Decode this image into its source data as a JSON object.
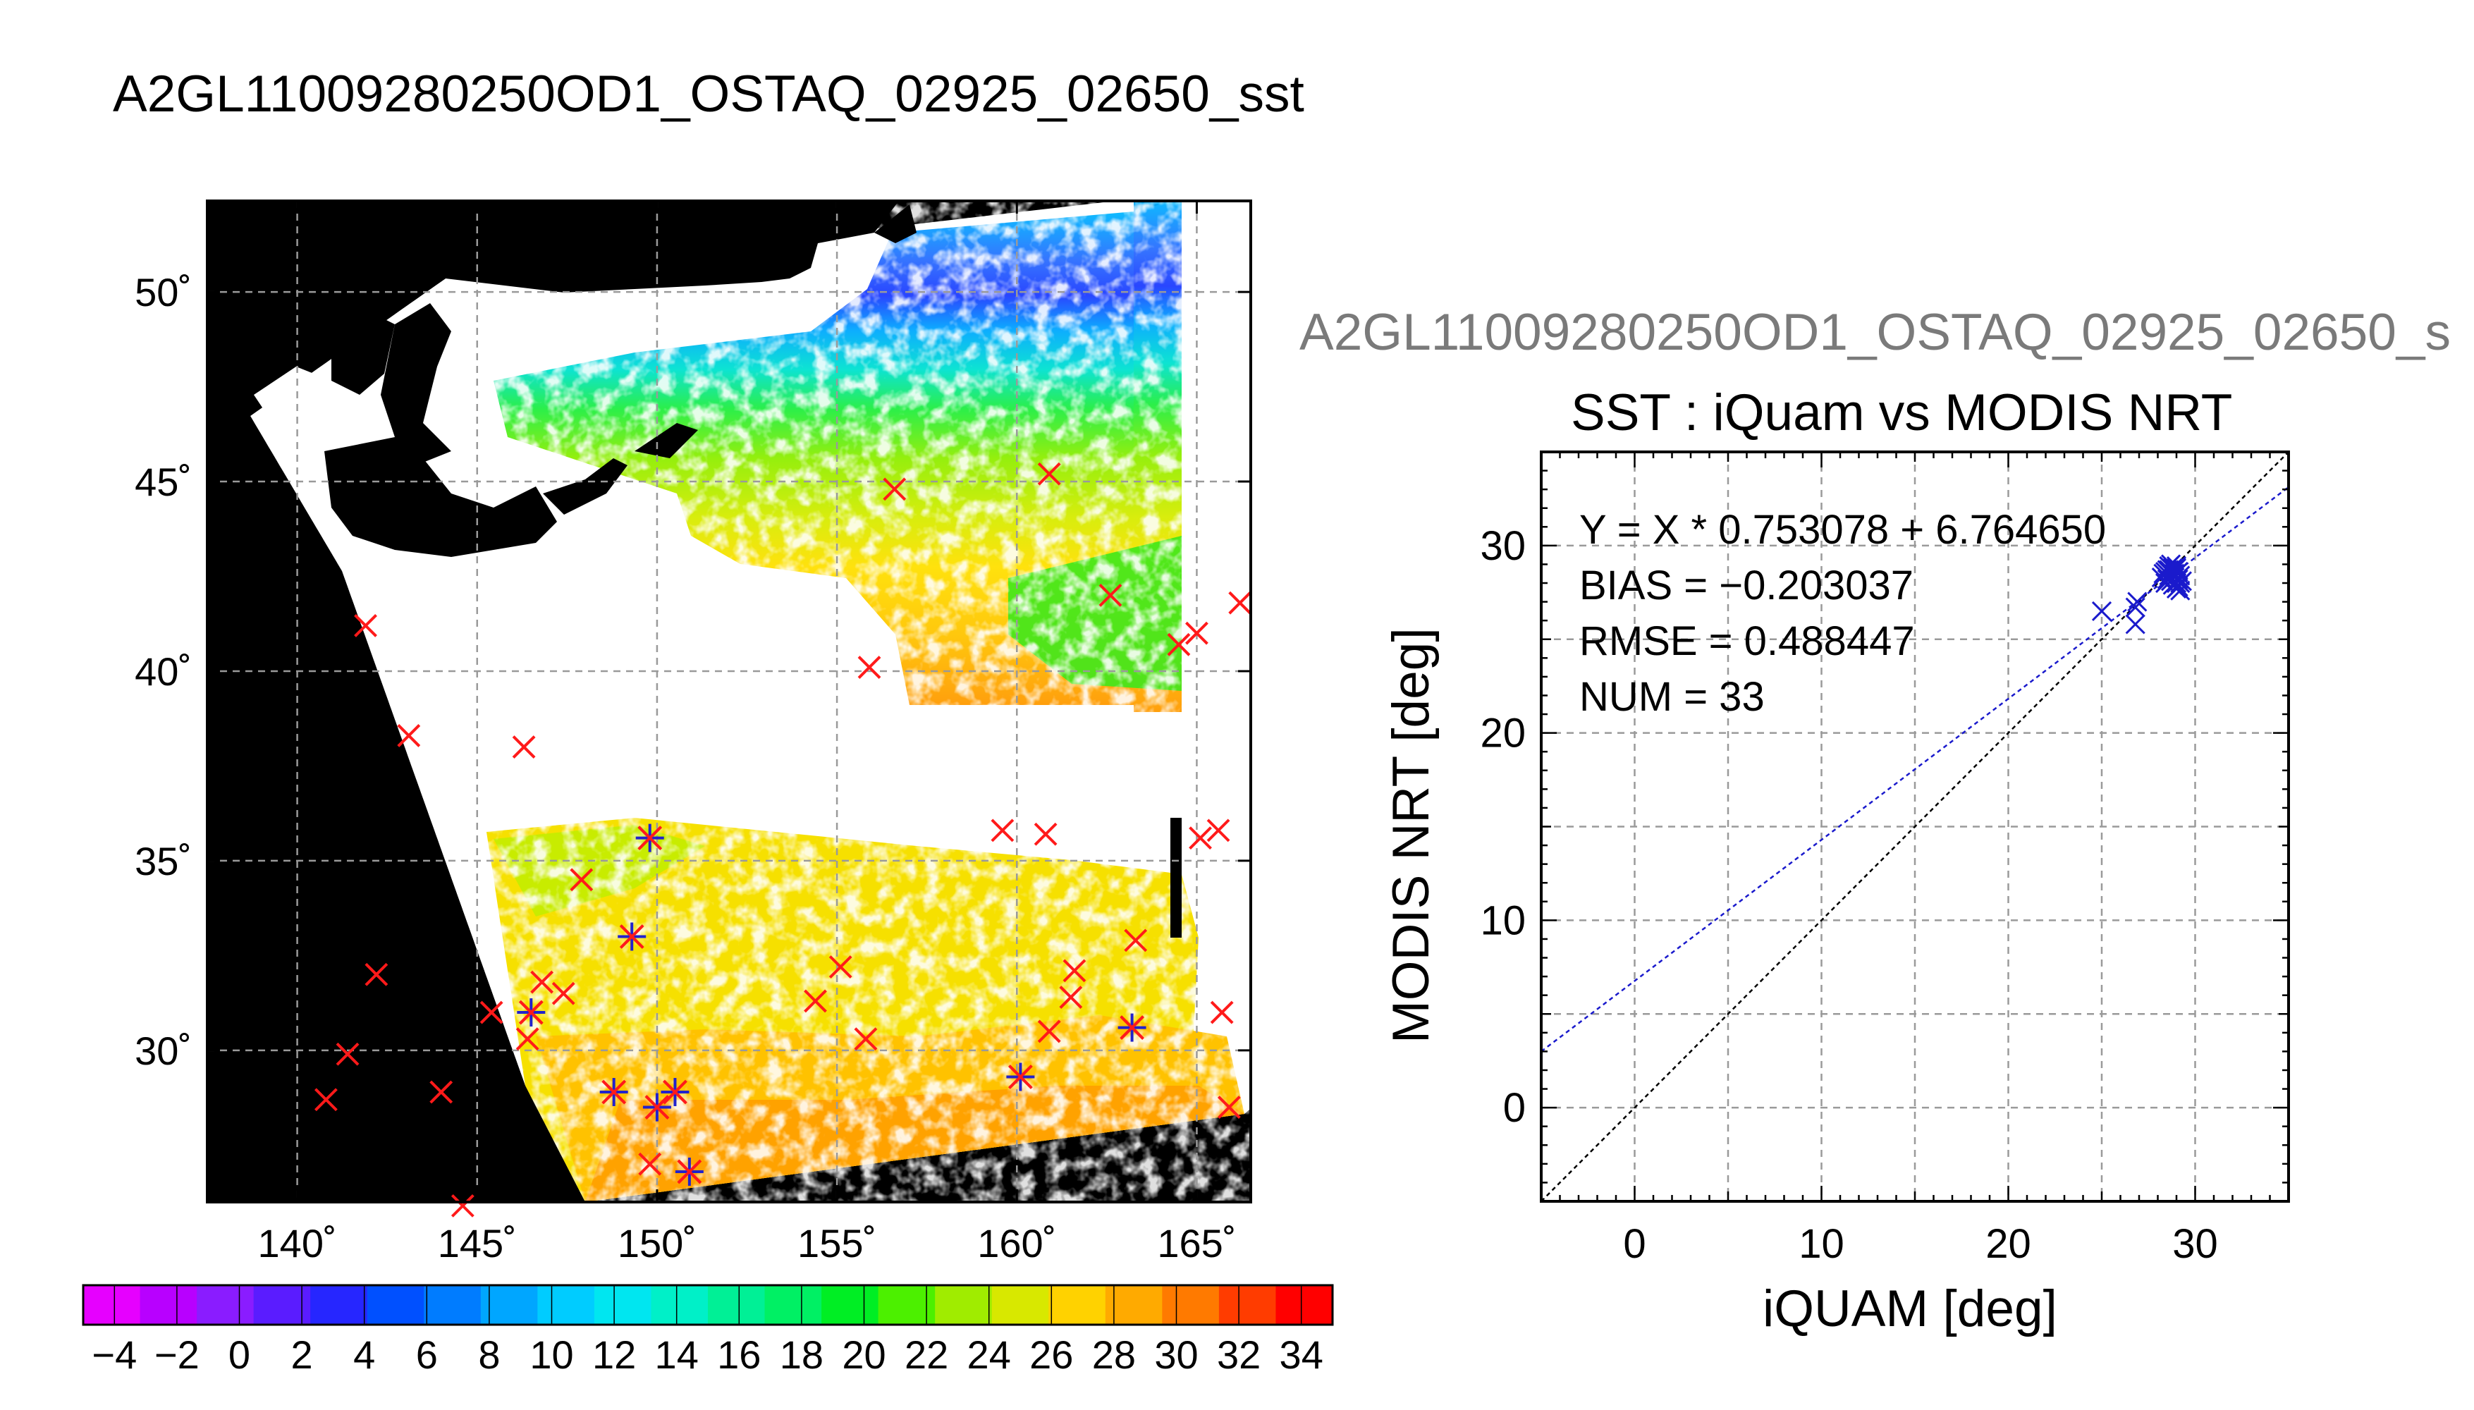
{
  "main_title": "A2GL11009280250OD1_OSTAQ_02925_02650_sst",
  "scatter_header": "A2GL11009280250OD1_OSTAQ_02925_02650_s",
  "colors": {
    "buoy_marker": "#ff1a1a",
    "matched_marker": "#2222cc",
    "fit_line": "#1a1acc",
    "one_to_one_line": "#000000",
    "land": "#000000",
    "cloud": "#ffffff"
  },
  "chart_data": [
    {
      "type": "heatmap",
      "name": "sst-map",
      "title": "",
      "x_ticks": [
        "140˚",
        "145˚",
        "150˚",
        "155˚",
        "160˚",
        "165˚"
      ],
      "x_tick_values": [
        140,
        145,
        150,
        155,
        160,
        165
      ],
      "y_ticks": [
        "30˚",
        "35˚",
        "40˚",
        "45˚",
        "50˚"
      ],
      "y_tick_values": [
        30,
        35,
        40,
        45,
        50
      ],
      "xlim": [
        137.5,
        166.5
      ],
      "ylim": [
        26.0,
        52.4
      ],
      "grid": true,
      "colorbar": {
        "range": [
          -5,
          35
        ],
        "labels": [
          "−4",
          "−2",
          "0",
          "2",
          "4",
          "6",
          "8",
          "10",
          "12",
          "14",
          "16",
          "18",
          "20",
          "22",
          "24",
          "26",
          "28",
          "30",
          "32",
          "34"
        ],
        "label_values": [
          -4,
          -2,
          0,
          2,
          4,
          6,
          8,
          10,
          12,
          14,
          16,
          18,
          20,
          22,
          24,
          26,
          28,
          30,
          32,
          34
        ],
        "colors": [
          "#e600ff",
          "#b800ff",
          "#8a1cff",
          "#5a1cff",
          "#2626ff",
          "#0050ff",
          "#007cff",
          "#00a6ff",
          "#00ccff",
          "#00e6f0",
          "#00f0c8",
          "#00f096",
          "#00f064",
          "#00ee24",
          "#4cf000",
          "#a0ec00",
          "#d8e800",
          "#ffd200",
          "#ffaa00",
          "#ff7a00",
          "#ff3c00",
          "#ff0000"
        ]
      },
      "buoys": [
        [
          141.9,
          41.2
        ],
        [
          143.1,
          38.3
        ],
        [
          146.3,
          38.0
        ],
        [
          142.2,
          32.0
        ],
        [
          141.4,
          29.9
        ],
        [
          140.8,
          28.7
        ],
        [
          144.0,
          28.9
        ],
        [
          144.6,
          25.9
        ],
        [
          145.4,
          31.0
        ],
        [
          146.4,
          30.3
        ],
        [
          146.5,
          31.0
        ],
        [
          146.8,
          31.8
        ],
        [
          147.4,
          31.5
        ],
        [
          147.9,
          34.5
        ],
        [
          148.8,
          28.9
        ],
        [
          149.3,
          33.0
        ],
        [
          149.8,
          35.6
        ],
        [
          149.8,
          27.0
        ],
        [
          150.0,
          28.5
        ],
        [
          150.5,
          28.9
        ],
        [
          150.9,
          26.8
        ],
        [
          154.4,
          31.3
        ],
        [
          155.1,
          32.2
        ],
        [
          155.8,
          30.3
        ],
        [
          155.9,
          40.1
        ],
        [
          156.6,
          44.8
        ],
        [
          159.6,
          35.8
        ],
        [
          160.1,
          29.3
        ],
        [
          160.8,
          35.7
        ],
        [
          160.9,
          45.2
        ],
        [
          160.9,
          30.5
        ],
        [
          161.5,
          31.4
        ],
        [
          161.6,
          32.1
        ],
        [
          162.6,
          42.0
        ],
        [
          163.2,
          30.6
        ],
        [
          163.3,
          32.9
        ],
        [
          164.5,
          40.7
        ],
        [
          165.0,
          41.0
        ],
        [
          165.1,
          35.6
        ],
        [
          165.6,
          35.8
        ],
        [
          165.7,
          31.0
        ],
        [
          165.9,
          28.5
        ],
        [
          166.2,
          41.8
        ]
      ],
      "matched": [
        [
          146.5,
          31.0
        ],
        [
          148.8,
          28.9
        ],
        [
          149.3,
          33.0
        ],
        [
          149.8,
          35.6
        ],
        [
          150.0,
          28.5
        ],
        [
          150.5,
          28.9
        ],
        [
          150.9,
          26.8
        ],
        [
          160.1,
          29.3
        ],
        [
          163.2,
          30.6
        ]
      ]
    },
    {
      "type": "scatter",
      "name": "sst-scatter",
      "title": "SST : iQuam vs MODIS NRT",
      "xlabel": "iQUAM [deg]",
      "ylabel": "MODIS NRT [deg]",
      "xlim": [
        -5,
        35
      ],
      "ylim": [
        -5,
        35
      ],
      "x_ticks": [
        "0",
        "10",
        "20",
        "30"
      ],
      "x_tick_values": [
        0,
        10,
        20,
        30
      ],
      "y_ticks": [
        "0",
        "10",
        "20",
        "30"
      ],
      "y_tick_values": [
        0,
        10,
        20,
        30
      ],
      "grid": true,
      "fit": {
        "slope": 0.753078,
        "intercept": 6.76465
      },
      "stats": [
        "Y = X * 0.753078 + 6.764650",
        "BIAS = −0.203037",
        "RMSE = 0.488447",
        "NUM = 33"
      ],
      "x": [
        25.0,
        26.8,
        26.8,
        26.9,
        28.2,
        28.3,
        28.4,
        28.5,
        28.5,
        28.6,
        28.6,
        28.7,
        28.7,
        28.8,
        28.8,
        28.9,
        28.9,
        29.0,
        29.0,
        29.0,
        29.1,
        29.1,
        29.1,
        29.2,
        29.2,
        29.2,
        29.3,
        28.4,
        28.6,
        28.8,
        29.0,
        28.7,
        28.9
      ],
      "y": [
        26.5,
        25.8,
        26.7,
        27.0,
        28.3,
        28.5,
        28.0,
        28.7,
        28.2,
        28.9,
        28.4,
        28.6,
        28.1,
        28.8,
        27.9,
        28.5,
        28.3,
        28.9,
        28.0,
        27.7,
        28.6,
        28.2,
        27.8,
        28.4,
        28.0,
        27.6,
        28.1,
        28.6,
        28.7,
        28.5,
        28.8,
        29.0,
        28.3
      ]
    }
  ]
}
